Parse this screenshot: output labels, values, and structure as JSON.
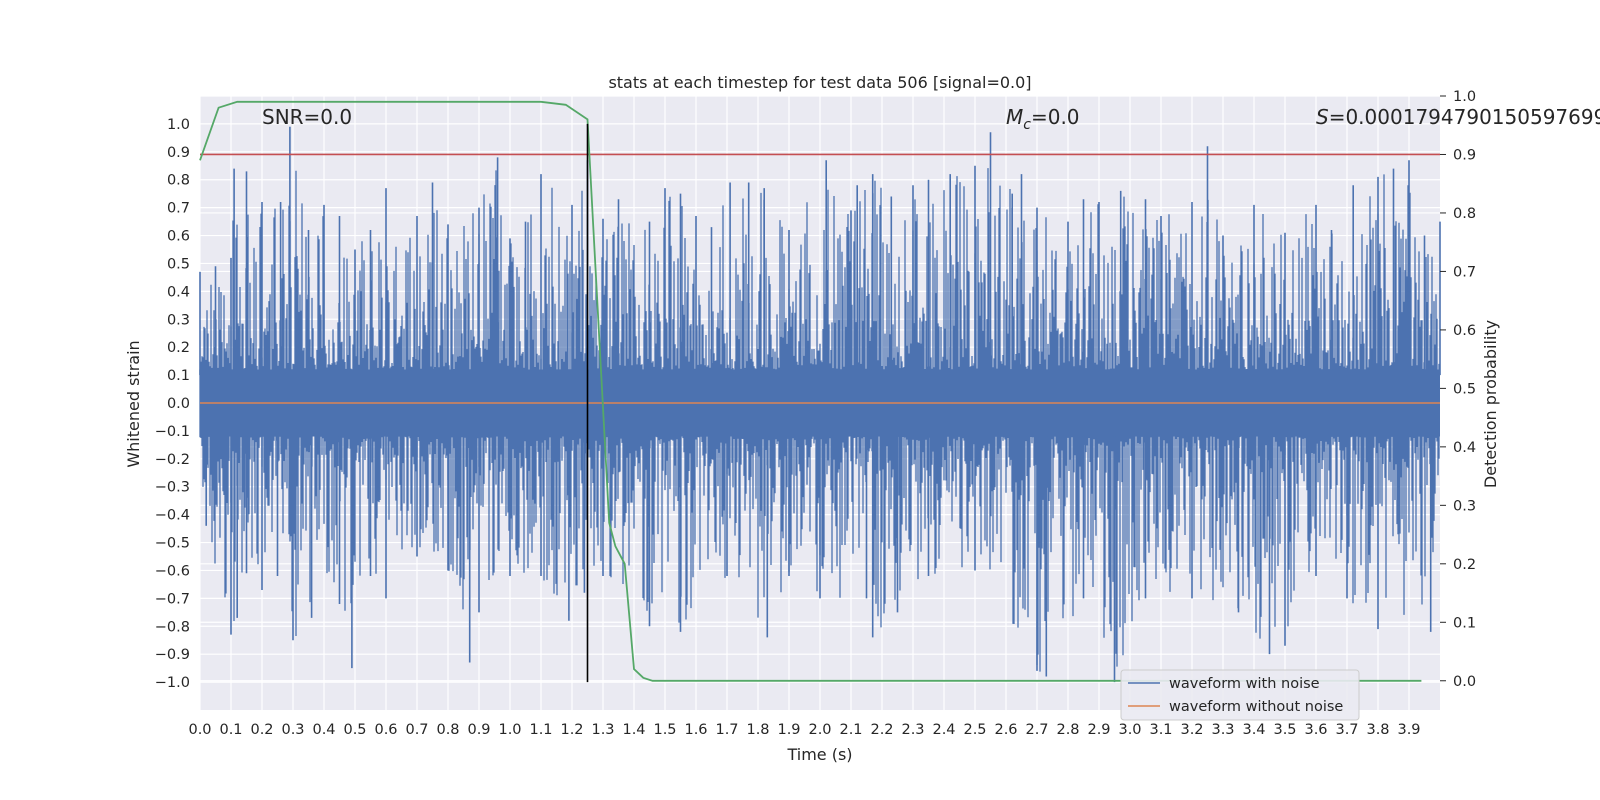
{
  "chart_data": {
    "type": "line",
    "title": "stats at each timestep for test data 506 [signal=0.0]",
    "xlabel": "Time (s)",
    "ylabel": "Whitened strain",
    "y2label": "Detection probability",
    "xlim": [
      0.0,
      4.0
    ],
    "ylim": [
      -1.1,
      1.1
    ],
    "y2lim": [
      -0.05,
      1.0
    ],
    "xticks": [
      "0.0",
      "0.1",
      "0.2",
      "0.3",
      "0.4",
      "0.5",
      "0.6",
      "0.7",
      "0.8",
      "0.9",
      "1.0",
      "1.1",
      "1.2",
      "1.3",
      "1.4",
      "1.5",
      "1.6",
      "1.7",
      "1.8",
      "1.9",
      "2.0",
      "2.1",
      "2.2",
      "2.3",
      "2.4",
      "2.5",
      "2.6",
      "2.7",
      "2.8",
      "2.9",
      "3.0",
      "3.1",
      "3.2",
      "3.3",
      "3.4",
      "3.5",
      "3.6",
      "3.7",
      "3.8",
      "3.9"
    ],
    "yticks": [
      "1.0",
      "0.9",
      "0.8",
      "0.7",
      "0.6",
      "0.5",
      "0.4",
      "0.3",
      "0.2",
      "0.1",
      "0.0",
      "-0.1",
      "-0.2",
      "-0.3",
      "-0.4",
      "-0.5",
      "-0.6",
      "-0.7",
      "-0.8",
      "-0.9",
      "-1.0"
    ],
    "y2ticks": [
      "0.0",
      "0.1",
      "0.2",
      "0.3",
      "0.4",
      "0.5",
      "0.6",
      "0.7",
      "0.8",
      "0.9",
      "1.0"
    ],
    "annotations": {
      "snr": "SNR=0.0",
      "mc_symbol": "M",
      "mc_sub": "c",
      "mc_value": "=0.0",
      "s_symbol": "S",
      "s_value": "=0.0001794790150597699"
    },
    "legend": {
      "position": "lower-right",
      "entries": [
        "waveform with noise",
        "waveform without noise"
      ]
    },
    "colors": {
      "noise": "#4c72b0",
      "clean": "#dd8452",
      "probability": "#55a868",
      "threshold": "#c44e52",
      "marker": "#000000",
      "background": "#eaeaf2"
    },
    "series": [
      {
        "name": "waveform with noise",
        "axis": "left",
        "note": "dense noise trace, peaks read from figure",
        "positive_peaks": [
          [
            0.0,
            0.47
          ],
          [
            0.05,
            0.49
          ],
          [
            0.1,
            0.52
          ],
          [
            0.11,
            0.84
          ],
          [
            0.15,
            0.83
          ],
          [
            0.2,
            0.72
          ],
          [
            0.26,
            0.72
          ],
          [
            0.29,
            0.99
          ],
          [
            0.35,
            0.62
          ],
          [
            0.4,
            0.71
          ],
          [
            0.45,
            0.67
          ],
          [
            0.5,
            0.55
          ],
          [
            0.55,
            0.62
          ],
          [
            0.6,
            0.77
          ],
          [
            0.7,
            0.67
          ],
          [
            0.75,
            0.79
          ],
          [
            0.8,
            0.64
          ],
          [
            0.9,
            0.7
          ],
          [
            0.96,
            0.88
          ],
          [
            1.0,
            0.59
          ],
          [
            1.05,
            0.65
          ],
          [
            1.1,
            0.82
          ],
          [
            1.2,
            0.71
          ],
          [
            1.25,
            0.87
          ],
          [
            1.3,
            0.66
          ],
          [
            1.35,
            0.73
          ],
          [
            1.45,
            0.65
          ],
          [
            1.5,
            0.77
          ],
          [
            1.55,
            0.75
          ],
          [
            1.6,
            0.67
          ],
          [
            1.65,
            0.63
          ],
          [
            1.71,
            0.79
          ],
          [
            1.77,
            0.79
          ],
          [
            1.82,
            0.77
          ],
          [
            1.9,
            0.62
          ],
          [
            2.02,
            0.87
          ],
          [
            2.1,
            0.69
          ],
          [
            2.12,
            0.78
          ],
          [
            2.17,
            0.82
          ],
          [
            2.23,
            0.74
          ],
          [
            2.3,
            0.78
          ],
          [
            2.35,
            0.8
          ],
          [
            2.42,
            0.82
          ],
          [
            2.5,
            0.85
          ],
          [
            2.55,
            0.97
          ],
          [
            2.62,
            0.75
          ],
          [
            2.65,
            0.82
          ],
          [
            2.7,
            0.7
          ],
          [
            2.8,
            0.65
          ],
          [
            2.85,
            0.73
          ],
          [
            2.9,
            0.72
          ],
          [
            2.97,
            0.76
          ],
          [
            3.05,
            0.73
          ],
          [
            3.1,
            0.67
          ],
          [
            3.2,
            0.72
          ],
          [
            3.25,
            0.92
          ],
          [
            3.3,
            0.6
          ],
          [
            3.4,
            0.71
          ],
          [
            3.5,
            0.61
          ],
          [
            3.6,
            0.71
          ],
          [
            3.65,
            0.62
          ],
          [
            3.72,
            0.78
          ],
          [
            3.8,
            0.81
          ],
          [
            3.85,
            0.84
          ],
          [
            3.9,
            0.87
          ],
          [
            3.95,
            0.6
          ],
          [
            4.0,
            0.65
          ]
        ],
        "negative_peaks": [
          [
            0.02,
            -0.44
          ],
          [
            0.1,
            -0.83
          ],
          [
            0.12,
            -0.77
          ],
          [
            0.15,
            -0.61
          ],
          [
            0.2,
            -0.67
          ],
          [
            0.25,
            -0.62
          ],
          [
            0.3,
            -0.85
          ],
          [
            0.36,
            -0.77
          ],
          [
            0.45,
            -0.72
          ],
          [
            0.49,
            -0.95
          ],
          [
            0.55,
            -0.62
          ],
          [
            0.6,
            -0.7
          ],
          [
            0.7,
            -0.55
          ],
          [
            0.8,
            -0.6
          ],
          [
            0.87,
            -0.93
          ],
          [
            0.9,
            -0.75
          ],
          [
            1.0,
            -0.62
          ],
          [
            1.1,
            -0.62
          ],
          [
            1.19,
            -0.78
          ],
          [
            1.24,
            -0.68
          ],
          [
            1.3,
            -0.62
          ],
          [
            1.45,
            -0.8
          ],
          [
            1.55,
            -0.82
          ],
          [
            1.7,
            -0.62
          ],
          [
            1.83,
            -0.84
          ],
          [
            1.9,
            -0.62
          ],
          [
            2.0,
            -0.7
          ],
          [
            2.15,
            -0.7
          ],
          [
            2.17,
            -0.84
          ],
          [
            2.25,
            -0.75
          ],
          [
            2.35,
            -0.62
          ],
          [
            2.5,
            -0.6
          ],
          [
            2.7,
            -0.96
          ],
          [
            2.73,
            -0.98
          ],
          [
            2.85,
            -0.7
          ],
          [
            2.95,
            -1.0
          ],
          [
            3.05,
            -0.7
          ],
          [
            3.2,
            -0.7
          ],
          [
            3.35,
            -0.75
          ],
          [
            3.45,
            -0.9
          ],
          [
            3.5,
            -0.87
          ],
          [
            3.6,
            -0.62
          ],
          [
            3.7,
            -0.7
          ],
          [
            3.8,
            -0.81
          ],
          [
            3.97,
            -0.82
          ]
        ]
      },
      {
        "name": "waveform without noise",
        "axis": "left",
        "x": [
          0.0,
          4.0
        ],
        "values": [
          0.0,
          0.0
        ]
      },
      {
        "name": "detection probability",
        "axis": "right",
        "x": [
          0.0,
          0.06,
          0.12,
          1.1,
          1.18,
          1.25,
          1.32,
          1.34,
          1.37,
          1.4,
          1.43,
          1.46,
          3.94
        ],
        "values": [
          0.89,
          0.98,
          0.99,
          0.99,
          0.985,
          0.96,
          0.27,
          0.23,
          0.2,
          0.02,
          0.005,
          0.0,
          0.0
        ]
      }
    ],
    "threshold_y": 0.9,
    "marker_x": 1.25,
    "marker_y_range": [
      -1.0,
      1.0
    ]
  }
}
